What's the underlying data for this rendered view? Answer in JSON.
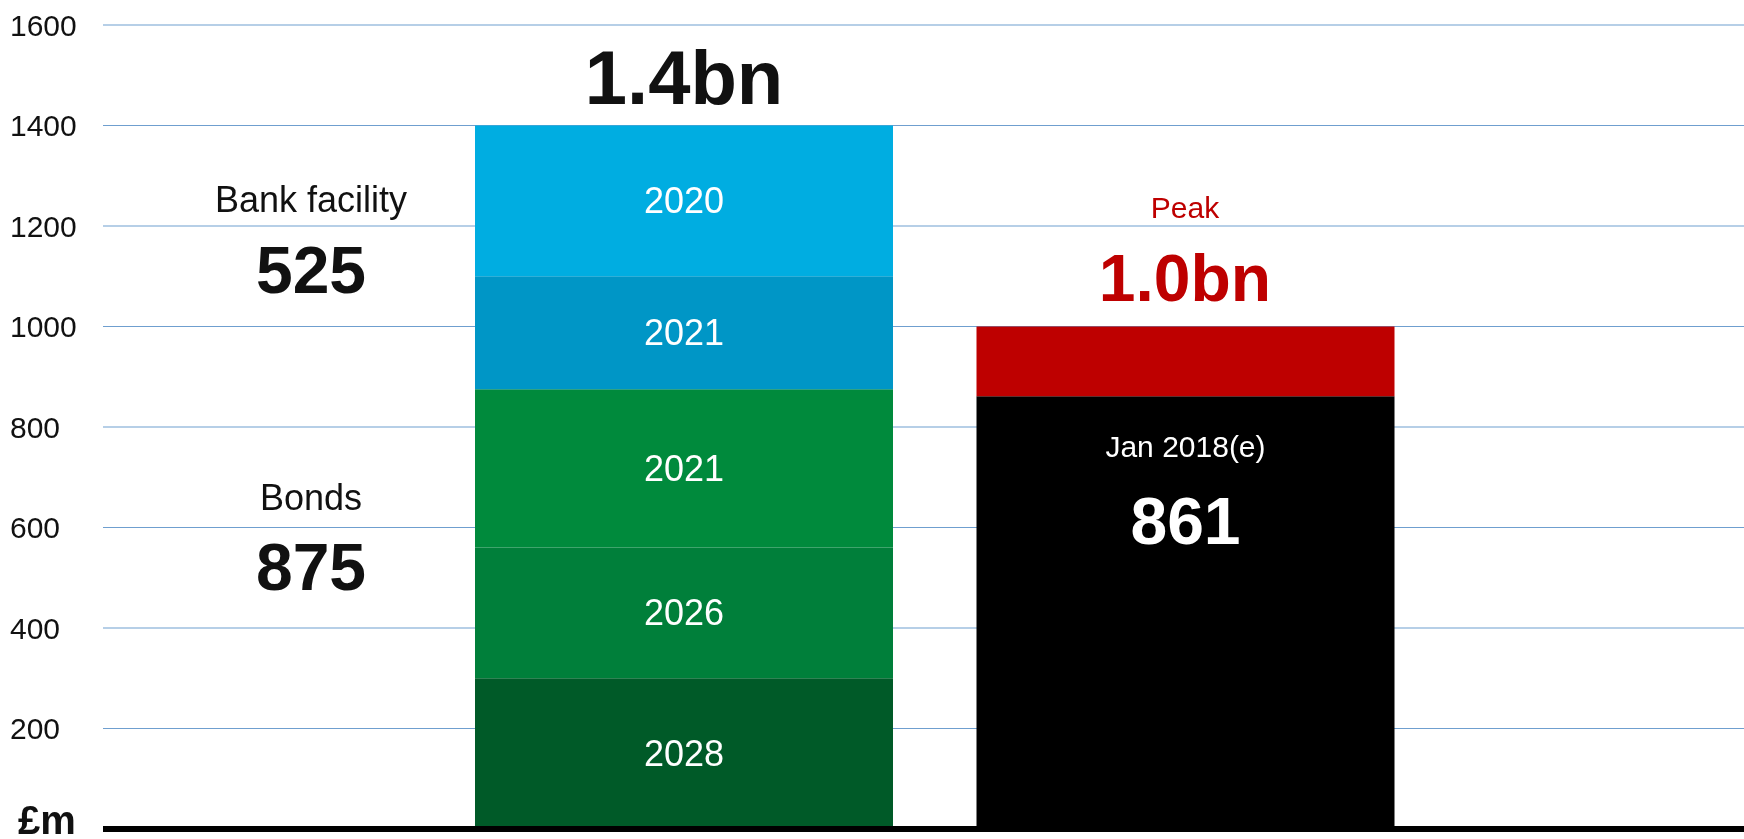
{
  "chart_data": {
    "type": "bar",
    "stacked": true,
    "ylabel": "£m",
    "categories": [
      null,
      null
    ],
    "series": [
      {
        "name": "2028",
        "color": "#005a28",
        "values": [
          300,
          null
        ]
      },
      {
        "name": "2026",
        "color": "#007f3a",
        "values": [
          260,
          null
        ]
      },
      {
        "name": "2021",
        "color": "#008a3c",
        "values": [
          315,
          null
        ]
      },
      {
        "name": "2021",
        "color": "#0096c6",
        "values": [
          225,
          null
        ]
      },
      {
        "name": "2020",
        "color": "#00ade1",
        "values": [
          300,
          null
        ]
      },
      {
        "name": "Jan 2018(e)",
        "color": "#000000",
        "values": [
          null,
          861
        ],
        "value_labels": [
          null,
          "861"
        ]
      },
      {
        "color": "#be0000",
        "values": [
          null,
          139
        ]
      }
    ],
    "ylim": [
      0,
      1600
    ],
    "yticks": [
      {
        "value": 0,
        "label": null
      },
      200,
      400,
      600,
      800,
      1000,
      1200,
      1400,
      1600
    ],
    "grid": "y",
    "tick_labels": "y",
    "annotations": [
      "Bank facility",
      "525",
      "Bonds",
      "875",
      "1.4bn",
      "Peak",
      "1.0bn"
    ]
  }
}
